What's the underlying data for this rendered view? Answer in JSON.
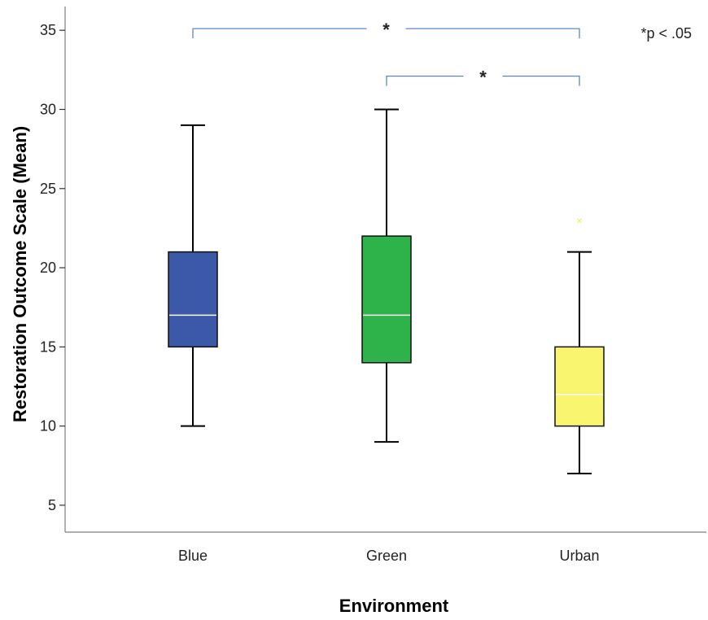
{
  "chart_data": {
    "type": "boxplot",
    "title": "",
    "xlabel": "Environment",
    "ylabel": "Restoration Outcome Scale (Mean)",
    "ylim": [
      3.3,
      36.5
    ],
    "yticks": [
      5,
      10,
      15,
      20,
      25,
      30,
      35
    ],
    "grid": false,
    "categories": [
      "Blue",
      "Green",
      "Urban"
    ],
    "boxes": [
      {
        "category": "Blue",
        "min": 10,
        "q1": 15,
        "median": 17,
        "q3": 21,
        "max": 29,
        "color": "#3C58A8",
        "outliers": []
      },
      {
        "category": "Green",
        "min": 9,
        "q1": 14,
        "median": 17,
        "q3": 22,
        "max": 30,
        "color": "#2DB34A",
        "outliers": []
      },
      {
        "category": "Urban",
        "min": 7,
        "q1": 10,
        "median": 12,
        "q3": 15,
        "max": 21,
        "color": "#FAF56E",
        "outliers": [
          23
        ]
      }
    ],
    "significance": [
      {
        "from": "Blue",
        "to": "Urban",
        "y": 35,
        "label": "*"
      },
      {
        "from": "Green",
        "to": "Urban",
        "y": 32,
        "label": "*"
      }
    ],
    "annotation": "*p < .05",
    "colors": {
      "axis": "#7f7f7f",
      "whisker": "#000000",
      "median": "#ffffff",
      "bracket": "#4a7fc1",
      "outlier": "#f2ee3a"
    }
  }
}
